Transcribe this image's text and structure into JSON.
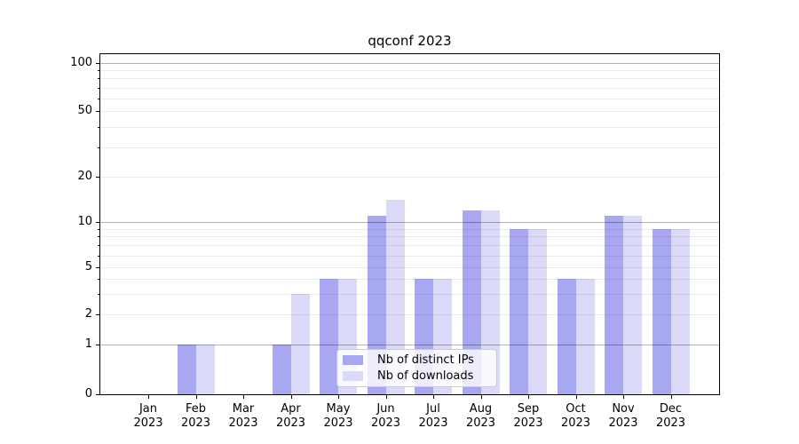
{
  "title": "qqconf 2023",
  "y_axis": {
    "ticks": [
      {
        "label": "100",
        "value": 100
      },
      {
        "label": "50",
        "value": 50
      },
      {
        "label": "20",
        "value": 20
      },
      {
        "label": "10",
        "value": 10
      },
      {
        "label": "5",
        "value": 5
      },
      {
        "label": "2",
        "value": 2
      },
      {
        "label": "1",
        "value": 1
      },
      {
        "label": "0",
        "value": 0
      }
    ]
  },
  "x_axis": {
    "months": [
      "Jan",
      "Feb",
      "Mar",
      "Apr",
      "May",
      "Jun",
      "Jul",
      "Aug",
      "Sep",
      "Oct",
      "Nov",
      "Dec"
    ],
    "year": "2023"
  },
  "chart_data": {
    "type": "bar",
    "title": "qqconf 2023",
    "categories": [
      "Jan 2023",
      "Feb 2023",
      "Mar 2023",
      "Apr 2023",
      "May 2023",
      "Jun 2023",
      "Jul 2023",
      "Aug 2023",
      "Sep 2023",
      "Oct 2023",
      "Nov 2023",
      "Dec 2023"
    ],
    "series": [
      {
        "name": "Nb of distinct IPs",
        "color": "#a7a7f2",
        "values": [
          0,
          1,
          0,
          1,
          4,
          11,
          4,
          12,
          9,
          4,
          11,
          9
        ]
      },
      {
        "name": "Nb of downloads",
        "color": "#dadaf8",
        "values": [
          0,
          1,
          0,
          3,
          4,
          14,
          4,
          12,
          9,
          4,
          11,
          9
        ]
      }
    ],
    "xlabel": "",
    "ylabel": "",
    "y_scale": "log (0 pinned at baseline)",
    "y_ticks": [
      100,
      50,
      20,
      10,
      5,
      2,
      1,
      0
    ],
    "ylim": [
      0,
      110
    ],
    "grid": true,
    "legend_position": "lower center"
  }
}
